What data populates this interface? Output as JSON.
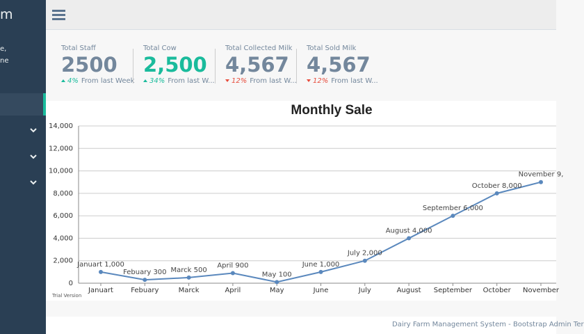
{
  "sidebar": {
    "brand": "m",
    "lines": [
      "e,",
      "ne"
    ]
  },
  "stats": [
    {
      "label": "Total Staff",
      "value": "2500",
      "change": "4%",
      "trend": "up",
      "note": "From last Week"
    },
    {
      "label": "Total Cow",
      "value": "2,500",
      "change": "34%",
      "trend": "up",
      "note": "From last W..."
    },
    {
      "label": "Total Collected Milk",
      "value": "4,567",
      "change": "12%",
      "trend": "down",
      "note": "From last W..."
    },
    {
      "label": "Total Sold Milk",
      "value": "4,567",
      "change": "12%",
      "trend": "down",
      "note": "From last W..."
    }
  ],
  "chart_data": {
    "type": "line",
    "title": "Monthly Sale",
    "categories": [
      "Januart",
      "Febuary",
      "Marck",
      "April",
      "May",
      "June",
      "July",
      "August",
      "September",
      "October",
      "November"
    ],
    "series": [
      {
        "name": "Sale",
        "color": "#5a88bd",
        "values": [
          1000,
          300,
          500,
          900,
          100,
          1000,
          2000,
          4000,
          6000,
          8000,
          9000
        ],
        "value_labels": [
          "Januart 1,000",
          "Febuary 300",
          "Marck 500",
          "April 900",
          "May 100",
          "June 1,000",
          "July 2,000",
          "August 4,000",
          "September 6,000",
          "October 8,000",
          "November 9,"
        ]
      }
    ],
    "ylim": [
      0,
      14000
    ],
    "yticks": [
      0,
      {
        "value": 2000,
        "label": "2,000"
      },
      {
        "value": 4000,
        "label": "4,000"
      },
      {
        "value": 6000,
        "label": "6,000"
      },
      {
        "value": 8000,
        "label": "8,000"
      },
      {
        "value": 10000,
        "label": "10,000"
      },
      {
        "value": 12000,
        "label": "12,000"
      },
      {
        "value": 14000,
        "label": "14,000"
      }
    ],
    "grid": true,
    "note": "Trial Version"
  },
  "footer": "Dairy Farm Management System - Bootstrap Admin Ter"
}
